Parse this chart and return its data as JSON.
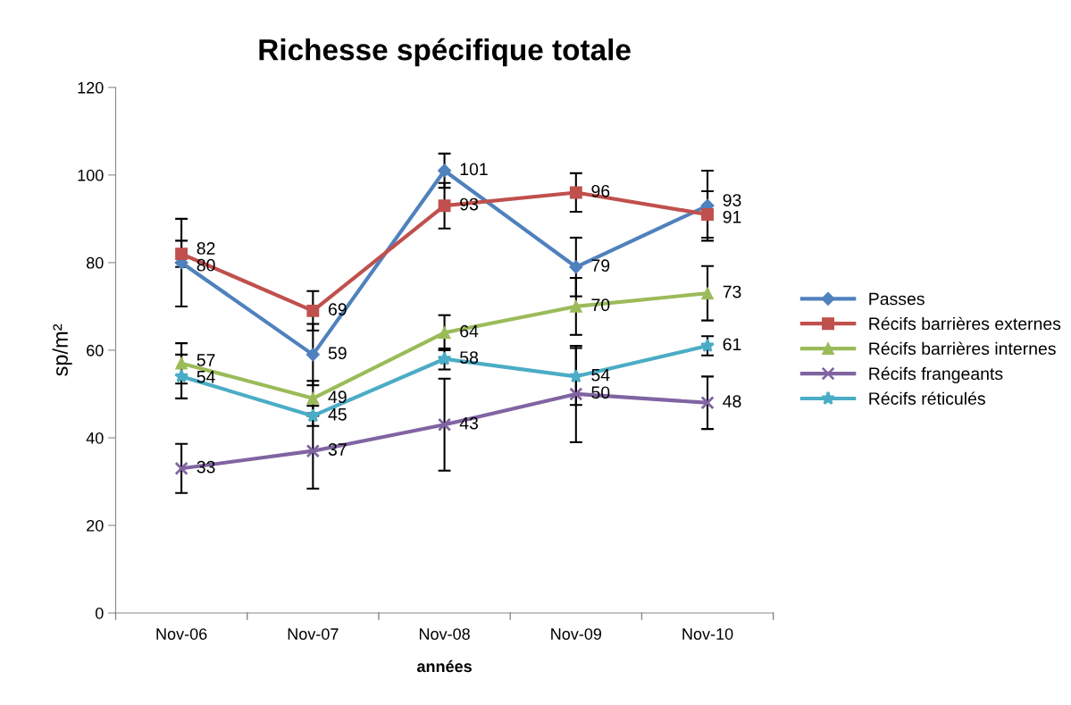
{
  "chart_data": {
    "type": "line",
    "title": "Richesse spécifique totale",
    "xlabel": "années",
    "ylabel": "sp/m²",
    "categories": [
      "Nov-06",
      "Nov-07",
      "Nov-08",
      "Nov-09",
      "Nov-10"
    ],
    "series": [
      {
        "name": "Passes",
        "color": "#4f81bd",
        "marker": "diamond",
        "values": [
          80,
          59,
          101,
          79,
          93
        ],
        "errors": [
          10,
          7,
          3.9,
          6.7,
          8
        ]
      },
      {
        "name": "Récifs barrières externes",
        "color": "#c0504d",
        "marker": "square",
        "values": [
          82,
          69,
          93,
          96,
          91
        ],
        "errors": [
          3,
          4.5,
          5.2,
          4.4,
          5.3
        ]
      },
      {
        "name": "Récifs barrières internes",
        "color": "#9bbb59",
        "marker": "triangle",
        "values": [
          57,
          49,
          64,
          70,
          73
        ],
        "errors": [
          4.6,
          4,
          4,
          6.5,
          6.2
        ]
      },
      {
        "name": "Récifs frangeants",
        "color": "#8064a2",
        "marker": "cross",
        "values": [
          33,
          37,
          43,
          50,
          48
        ],
        "errors": [
          5.6,
          8.6,
          10.5,
          11,
          6
        ]
      },
      {
        "name": "Récifs réticulés",
        "color": "#4bacc6",
        "marker": "star",
        "values": [
          54,
          45,
          58,
          54,
          61
        ],
        "errors": [
          5,
          2.3,
          2.4,
          6.5,
          2.2
        ]
      }
    ],
    "ylim": [
      0,
      120
    ],
    "yticks": [
      0,
      20,
      40,
      60,
      80,
      100,
      120
    ],
    "data_labels": true,
    "legend": "right",
    "grid": false
  }
}
